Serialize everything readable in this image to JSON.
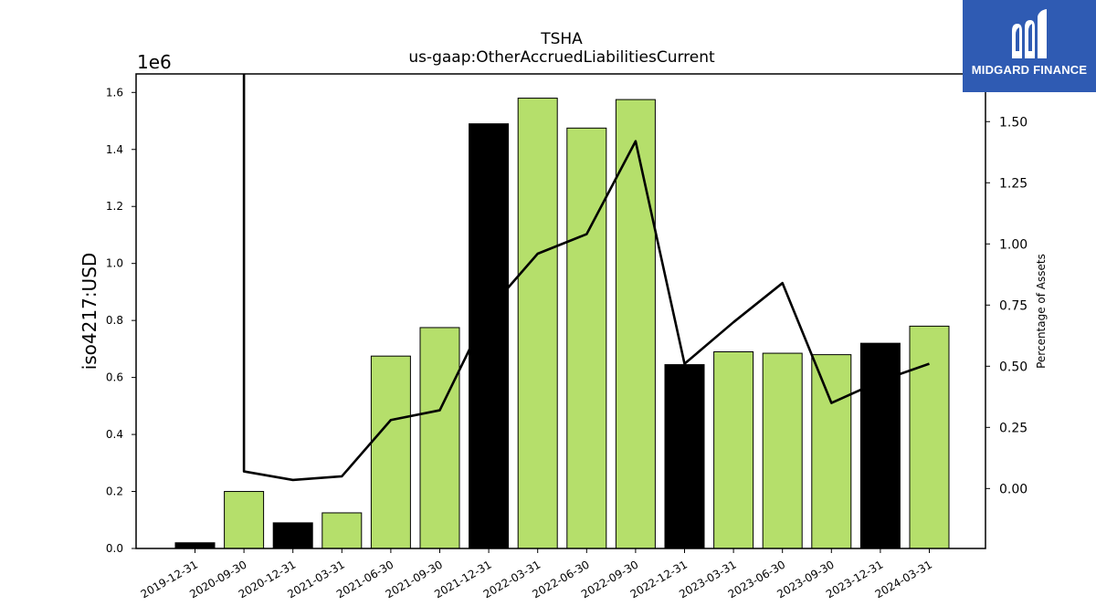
{
  "chart_data": {
    "type": "bar",
    "title": "TSHA",
    "subtitle": "us-gaap:OtherAccruedLiabilitiesCurrent",
    "ylabel": "iso4217:USD",
    "y_multiplier_label": "1e6",
    "y2label": "Percentage of Assets",
    "ylim": [
      0,
      1.665
    ],
    "y2lim": [
      -0.245,
      1.695
    ],
    "yticks": [
      "0.0",
      "0.2",
      "0.4",
      "0.6",
      "0.8",
      "1.0",
      "1.2",
      "1.4",
      "1.6"
    ],
    "y2ticks": [
      "0.00",
      "0.25",
      "0.50",
      "0.75",
      "1.00",
      "1.25",
      "1.50"
    ],
    "categories": [
      "2019-12-31",
      "2020-09-30",
      "2020-12-31",
      "2021-03-31",
      "2021-06-30",
      "2021-09-30",
      "2021-12-31",
      "2022-03-31",
      "2022-06-30",
      "2022-09-30",
      "2022-12-31",
      "2023-03-31",
      "2023-06-30",
      "2023-09-30",
      "2023-12-31",
      "2024-03-31"
    ],
    "series": [
      {
        "type": "bar",
        "values": [
          0.02,
          0.2,
          0.09,
          0.125,
          0.675,
          0.775,
          1.49,
          1.58,
          1.475,
          1.575,
          0.645,
          0.69,
          0.685,
          0.68,
          0.72,
          0.78
        ],
        "colors": [
          "#000000",
          "#b5df6b",
          "#000000",
          "#b5df6b",
          "#b5df6b",
          "#b5df6b",
          "#000000",
          "#b5df6b",
          "#b5df6b",
          "#b5df6b",
          "#000000",
          "#b5df6b",
          "#b5df6b",
          "#b5df6b",
          "#000000",
          "#b5df6b"
        ]
      },
      {
        "type": "line",
        "axis": "right",
        "values": [
          null,
          0.07,
          0.035,
          0.05,
          0.28,
          0.32,
          0.73,
          0.96,
          1.04,
          1.42,
          0.51,
          0.68,
          0.84,
          0.35,
          0.44,
          0.51
        ],
        "offscale_start_category": "2020-09-30",
        "color": "#000000"
      }
    ],
    "grid": false
  },
  "logo": {
    "text": "MIDGARD FINANCE",
    "bg_color": "#2f5bb3"
  }
}
